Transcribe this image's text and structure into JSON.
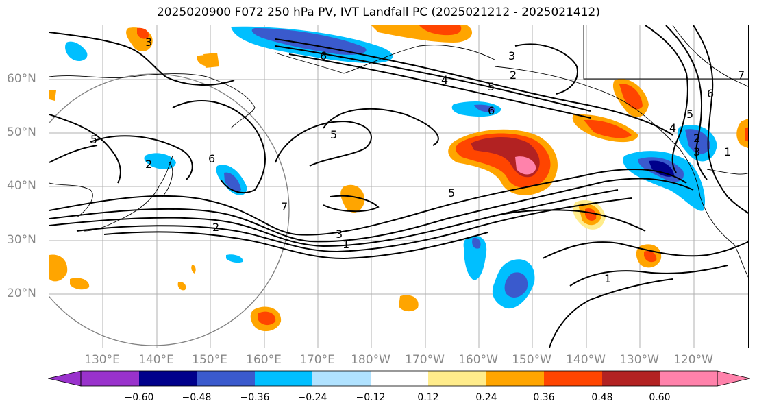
{
  "title": "2025020900 F072 250 hPa PV, IVT Landfall PC (2025021212 - 2025021412)",
  "map": {
    "lat_labels": [
      "60°N",
      "50°N",
      "40°N",
      "30°N",
      "20°N"
    ],
    "lon_labels": [
      "130°E",
      "140°E",
      "150°E",
      "160°E",
      "170°E",
      "180°W",
      "170°W",
      "160°W",
      "150°W",
      "140°W",
      "130°W",
      "120°W"
    ],
    "contour_labels": [
      "3",
      "6",
      "3",
      "2",
      "4",
      "5",
      "6",
      "2",
      "6",
      "5",
      "7",
      "2",
      "3",
      "1",
      "5",
      "1",
      "4",
      "5",
      "6",
      "3",
      "2",
      "1",
      "5",
      "7"
    ]
  },
  "colorbar": {
    "ticks": [
      "−0.60",
      "−0.48",
      "−0.36",
      "−0.24",
      "−0.12",
      "0.12",
      "0.24",
      "0.36",
      "0.48",
      "0.60"
    ],
    "colors": [
      "#9932cc",
      "#00008b",
      "#3a5acd",
      "#00bfff",
      "#b0e2ff",
      "#ffffff",
      "#ffec8b",
      "#ffa500",
      "#ff4500",
      "#b22222",
      "#ff82ab"
    ]
  }
}
